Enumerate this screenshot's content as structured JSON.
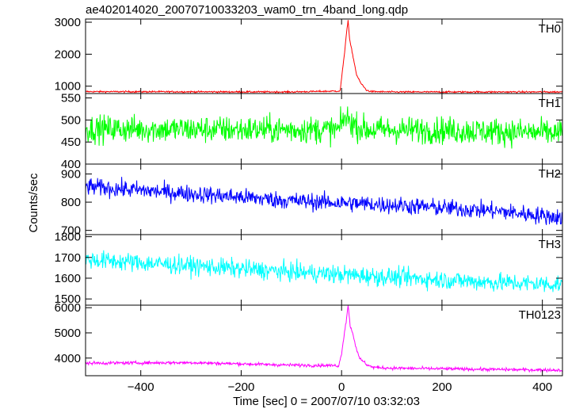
{
  "chart_data": {
    "type": "line",
    "title": "ae402014020_20070710033203_wam0_trn_4band_long.qdp",
    "xlabel": "Time [sec] 0 = 2007/07/10 03:32:03",
    "ylabel": "Counts/sec",
    "xlim": [
      -510,
      440
    ],
    "xticks": [
      -400,
      -200,
      0,
      200,
      400
    ],
    "xticklabels": [
      "−400",
      "−200",
      "0",
      "200",
      "400"
    ],
    "grid": false,
    "panels": [
      {
        "name": "TH0",
        "color": "#ff0000",
        "ylim": [
          770,
          3100
        ],
        "yticks": [
          1000,
          2000,
          3000
        ],
        "yticklabels": [
          "1000",
          "2000",
          "3000"
        ],
        "baseline": [
          [
            -510,
            830
          ],
          [
            -100,
            820
          ],
          [
            0,
            850
          ],
          [
            100,
            820
          ],
          [
            440,
            820
          ]
        ],
        "noise": 18,
        "burst": [
          [
            -2,
            960
          ],
          [
            0,
            1250
          ],
          [
            5,
            1900
          ],
          [
            10,
            2700
          ],
          [
            13,
            3050
          ],
          [
            16,
            2450
          ],
          [
            20,
            2150
          ],
          [
            25,
            1750
          ],
          [
            30,
            1350
          ],
          [
            38,
            1100
          ],
          [
            50,
            870
          ],
          [
            60,
            830
          ]
        ]
      },
      {
        "name": "TH1",
        "color": "#00ff00",
        "ylim": [
          400,
          560
        ],
        "yticks": [
          400,
          450,
          500,
          550
        ],
        "yticklabels": [
          "400",
          "450",
          "500",
          "550"
        ],
        "baseline": [
          [
            -510,
            480
          ],
          [
            -200,
            478
          ],
          [
            0,
            478
          ],
          [
            200,
            477
          ],
          [
            440,
            470
          ]
        ],
        "noise": 22,
        "burst": [
          [
            -5,
            478
          ],
          [
            5,
            505
          ],
          [
            15,
            500
          ],
          [
            30,
            485
          ],
          [
            50,
            478
          ]
        ]
      },
      {
        "name": "TH2",
        "color": "#0000ff",
        "ylim": [
          685,
          935
        ],
        "yticks": [
          700,
          800,
          900
        ],
        "yticklabels": [
          "700",
          "800",
          "900"
        ],
        "baseline": [
          [
            -510,
            855
          ],
          [
            -300,
            830
          ],
          [
            -100,
            805
          ],
          [
            100,
            790
          ],
          [
            300,
            770
          ],
          [
            440,
            745
          ]
        ],
        "noise": 22,
        "burst": []
      },
      {
        "name": "TH3",
        "color": "#00ffff",
        "ylim": [
          1470,
          1810
        ],
        "yticks": [
          1500,
          1600,
          1700,
          1800
        ],
        "yticklabels": [
          "1500",
          "1600",
          "1700",
          "1800"
        ],
        "baseline": [
          [
            -510,
            1690
          ],
          [
            -300,
            1660
          ],
          [
            -100,
            1630
          ],
          [
            100,
            1605
          ],
          [
            300,
            1580
          ],
          [
            440,
            1570
          ]
        ],
        "noise": 32,
        "burst": []
      },
      {
        "name": "TH0123",
        "color": "#ff00ff",
        "ylim": [
          3300,
          6100
        ],
        "yticks": [
          4000,
          5000,
          6000
        ],
        "yticklabels": [
          "4000",
          "5000",
          "6000"
        ],
        "baseline": [
          [
            -510,
            3800
          ],
          [
            -300,
            3820
          ],
          [
            -100,
            3720
          ],
          [
            0,
            3700
          ],
          [
            100,
            3600
          ],
          [
            300,
            3550
          ],
          [
            440,
            3520
          ]
        ],
        "noise": 45,
        "burst": [
          [
            -5,
            3720
          ],
          [
            0,
            4200
          ],
          [
            5,
            4900
          ],
          [
            10,
            5600
          ],
          [
            13,
            6100
          ],
          [
            17,
            5300
          ],
          [
            22,
            5000
          ],
          [
            28,
            4500
          ],
          [
            35,
            4000
          ],
          [
            50,
            3750
          ],
          [
            60,
            3650
          ]
        ]
      }
    ]
  }
}
